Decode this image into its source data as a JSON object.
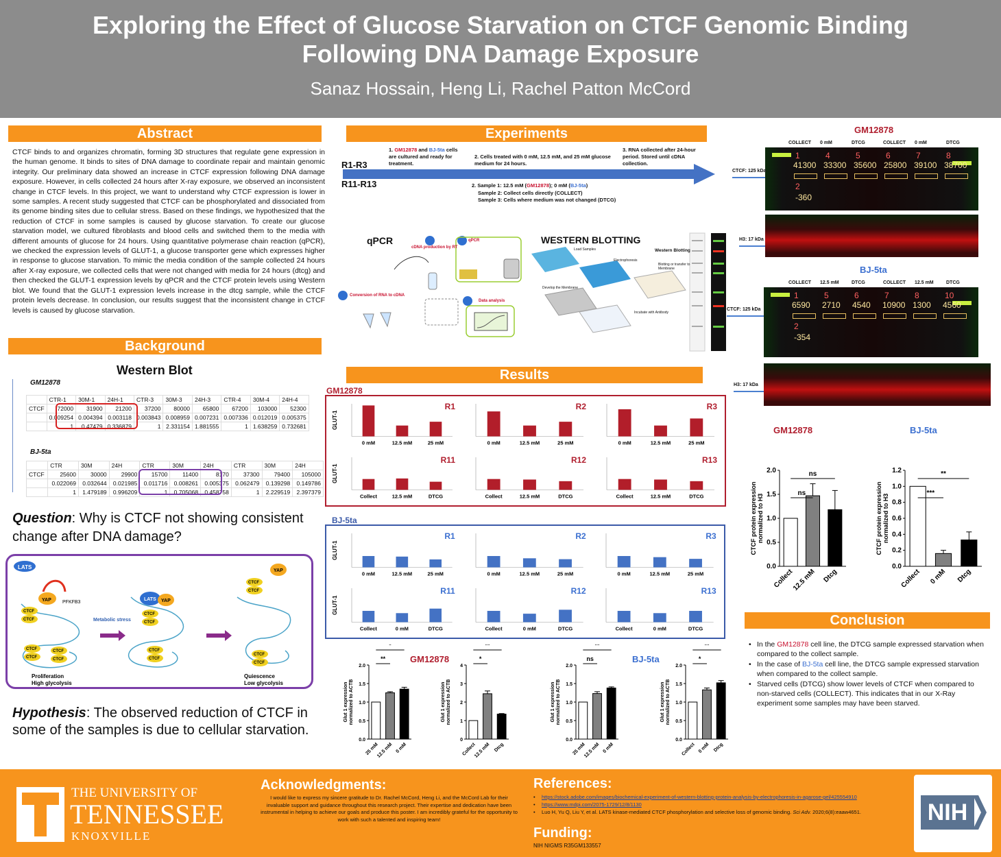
{
  "header": {
    "title_line1": "Exploring the Effect of Glucose Starvation on CTCF Genomic Binding",
    "title_line2": "Following DNA Damage Exposure",
    "authors": "Sanaz Hossain, Heng Li, Rachel Patton McCord"
  },
  "abstract": {
    "title": "Abstract",
    "text": "CTCF binds to and organizes chromatin, forming 3D structures that regulate gene expression in the human genome. It binds to sites of DNA damage to coordinate repair and maintain genomic integrity.  Our preliminary data showed an increase in CTCF expression following DNA damage exposure. However, in cells collected 24 hours after X-ray exposure, we observed an inconsistent change in CTCF levels. In this project, we want to understand why CTCF expression is lower in some samples. A recent study suggested that CTCF can be phosphorylated and dissociated from its genome binding sites due to cellular stress. Based on these findings, we hypothesized that the reduction of CTCF in some samples is caused by glucose starvation. To create our glucose starvation model, we cultured fibroblasts and blood cells and switched them to the media with different amounts of glucose for 24 hours. Using quantitative polymerase chain reaction (qPCR), we checked the expression levels of GLUT-1, a glucose transporter gene which expresses higher in response to glucose starvation. To mimic the media condition of the sample collected 24 hours after X-ray exposure, we collected cells that were not changed with media for 24 hours (dtcg) and then checked the GLUT-1 expression levels by qPCR and the CTCF protein levels using Western blot. We found that the GLUT-1 expression levels increase in the dtcg sample, while the CTCF protein levels decrease. In conclusion, our results suggest that the inconsistent change in CTCF levels is caused by glucose starvation."
  },
  "background": {
    "title": "Background",
    "wb_title": "Western Blot",
    "gm_label": "GM12878",
    "bj_label": "BJ-5ta",
    "gm_table": {
      "header": [
        "",
        "CTR-1",
        "30M-1",
        "24H-1",
        "CTR-3",
        "30M-3",
        "24H-3",
        "CTR-4",
        "30M-4",
        "24H-4"
      ],
      "rows": [
        [
          "CTCF",
          "72000",
          "31900",
          "21200",
          "37200",
          "80000",
          "65800",
          "67200",
          "103000",
          "52300"
        ],
        [
          "",
          "0.009254",
          "0.004394",
          "0.003118",
          "0.003843",
          "0.008959",
          "0.007231",
          "0.007336",
          "0.012019",
          "0.005375"
        ],
        [
          "",
          "1",
          "0.47479",
          "0.336879",
          "1",
          "2.331154",
          "1.881555",
          "1",
          "1.638259",
          "0.732681"
        ]
      ]
    },
    "bj_table": {
      "header": [
        "",
        "CTR",
        "30M",
        "24H",
        "CTR",
        "30M",
        "24H",
        "CTR",
        "30M",
        "24H"
      ],
      "rows": [
        [
          "CTCF",
          "25600",
          "30000",
          "29900",
          "15700",
          "11400",
          "8170",
          "37300",
          "79400",
          "105000"
        ],
        [
          "",
          "0.022069",
          "0.032644",
          "0.021985",
          "0.011716",
          "0.008261",
          "0.005375",
          "0.062479",
          "0.139298",
          "0.149786"
        ],
        [
          "",
          "1",
          "1.479189",
          "0.996209",
          "1",
          "0.705068",
          "0.458758",
          "1",
          "2.229519",
          "2.397379"
        ]
      ]
    },
    "question_bold": "Question",
    "question_text": ": Why is CTCF not showing consistent change after DNA damage?",
    "diagram": {
      "lats": "LATS",
      "yap": "YAP",
      "pfkfb3": "PFKFB3",
      "ctcf": "CTCF",
      "metabolic": "Metabolic stress",
      "left_caption": "Proliferation",
      "left_caption2": "High glycolysis",
      "right_caption": "Quiescence",
      "right_caption2": "Low glycolysis"
    },
    "hypothesis_bold": "Hypothesis",
    "hypothesis_text": ": The observed reduction of CTCF in some of the samples is due to cellular starvation."
  },
  "experiments": {
    "title": "Experiments",
    "r1": "R1-R3",
    "r11": "R11-R13",
    "step1a": "1. ",
    "step1_gm": "GM12878",
    "step1_and": " and ",
    "step1_bj": "BJ-5ta",
    "step1b": " cells are cultured and ready for treatment.",
    "step2": "2. Cells treated with 0 mM, 12.5 mM, and 25 mM glucose medium for 24 hours.",
    "step3": "3. RNA collected after 24-hour period. Stored until cDNA collection.",
    "sample1a": "2. Sample 1: 12.5 mM (",
    "sample1_gm": "GM12878",
    "sample1b": "); 0 mM (",
    "sample1_bj": "BJ-5ta",
    "sample1c": ")",
    "sample2": "Sample 2: Collect cells directly (COLLECT)",
    "sample3": "Sample 3: Cells where medium was not changed (DTCG)",
    "qpcr": "qPCR",
    "wb": "WESTERN BLOTTING",
    "q1": "Conversion of RNA to cDNA",
    "q2": "cDNA production by RT",
    "q3": "qPCR",
    "q4": "Data analysis",
    "wb1": "Load Samples",
    "wb2": "Electrophoresis",
    "wb3": "Blotting or transfer to Membrane",
    "wb4": "Develop the Membrane",
    "wb5": "Incubate with Antibody",
    "wb6": "Western Blotting"
  },
  "results": {
    "title": "Results",
    "gm": "GM12878",
    "bj": "BJ-5ta",
    "ylabel": "GLUT-1",
    "gm_panels": [
      {
        "name": "R1",
        "cats": [
          "0 mM",
          "12.5 mM",
          "25 mM"
        ],
        "values": [
          2.85,
          1.0,
          1.35
        ]
      },
      {
        "name": "R2",
        "cats": [
          "0 mM",
          "12.5 mM",
          "25 mM"
        ],
        "values": [
          2.3,
          1.0,
          1.35
        ]
      },
      {
        "name": "R3",
        "cats": [
          "0 mM",
          "12.5 mM",
          "25 mM"
        ],
        "values": [
          2.5,
          1.0,
          1.65
        ]
      },
      {
        "name": "R11",
        "cats": [
          "Collect",
          "12.5 mM",
          "DTCG"
        ],
        "values": [
          1.0,
          1.05,
          0.75
        ]
      },
      {
        "name": "R12",
        "cats": [
          "Collect",
          "12.5 mM",
          "DTCG"
        ],
        "values": [
          1.0,
          0.95,
          0.8
        ]
      },
      {
        "name": "R13",
        "cats": [
          "Collect",
          "12.5 mM",
          "DTCG"
        ],
        "values": [
          1.0,
          0.95,
          0.8
        ]
      }
    ],
    "bj_panels": [
      {
        "name": "R1",
        "cats": [
          "0 mM",
          "12.5 mM",
          "25 mM"
        ],
        "values": [
          1.0,
          0.95,
          0.7
        ]
      },
      {
        "name": "R2",
        "cats": [
          "0 mM",
          "12.5 mM",
          "25 mM"
        ],
        "values": [
          1.0,
          0.8,
          0.72
        ]
      },
      {
        "name": "R3",
        "cats": [
          "0 mM",
          "12.5 mM",
          "25 mM"
        ],
        "values": [
          1.0,
          0.9,
          0.75
        ]
      },
      {
        "name": "R11",
        "cats": [
          "Collect",
          "0 mM",
          "DTCG"
        ],
        "values": [
          1.0,
          0.8,
          1.2
        ]
      },
      {
        "name": "R12",
        "cats": [
          "Collect",
          "0 mM",
          "DTCG"
        ],
        "values": [
          1.0,
          0.75,
          1.1
        ]
      },
      {
        "name": "R13",
        "cats": [
          "Collect",
          "0 mM",
          "DTCG"
        ],
        "values": [
          1.0,
          0.8,
          1.0
        ]
      }
    ]
  },
  "blots": {
    "gm_title": "GM12878",
    "bj_title": "BJ-5ta",
    "ctcf": "CTCF: 125 kDa",
    "h3": "H3: 17 kDa",
    "gm_headers": [
      "COLLECT",
      "0 mM",
      "DTCG",
      "COLLECT",
      "0 mM",
      "DTCG"
    ],
    "bj_headers": [
      "COLLECT",
      "12.5 mM",
      "DTCG",
      "COLLECT",
      "12.5 mM",
      "DTCG"
    ],
    "gm_lanes": [
      "1",
      "4",
      "5",
      "6",
      "7",
      "8"
    ],
    "gm_values": [
      "41300",
      "33300",
      "35600",
      "25800",
      "39100",
      "38700"
    ],
    "gm_bg_lane": "2",
    "gm_bg": "-360",
    "bj_lanes": [
      "1",
      "5",
      "6",
      "7",
      "8",
      "10"
    ],
    "bj_values": [
      "6590",
      "2710",
      "4540",
      "10900",
      "1300",
      "4560"
    ],
    "bj_bg_lane": "2",
    "bj_bg": "-354"
  },
  "chart_data": [
    {
      "type": "bar",
      "title": "GM12878",
      "ylabel": "CTCF protein expression normalized to H3",
      "categories": [
        "Collect",
        "12.5 mM",
        "Dtcg"
      ],
      "values": [
        1.0,
        1.47,
        1.18
      ],
      "errors": [
        0,
        0.25,
        0.4
      ],
      "ylim": [
        0,
        2.0
      ],
      "yticks": [
        "0.0",
        "0.5",
        "1.0",
        "1.5",
        "2.0"
      ],
      "sig": [
        "ns",
        "ns"
      ]
    },
    {
      "type": "bar",
      "title": "BJ-5ta",
      "ylabel": "CTCF protein expression normalized to H3",
      "categories": [
        "Collect",
        "0 mM",
        "Dtcg"
      ],
      "values": [
        1.0,
        0.16,
        0.33
      ],
      "errors": [
        0,
        0.04,
        0.1
      ],
      "ylim": [
        0,
        1.2
      ],
      "yticks": [
        "0.0",
        "0.2",
        "0.4",
        "0.6",
        "0.8",
        "1.0",
        "1.2"
      ],
      "sig": [
        "***",
        "**"
      ]
    },
    {
      "type": "bar",
      "title": "GM12878",
      "ylabel": "Glut 1 expression normalized to ACTB",
      "categories": [
        "25 mM",
        "12.5 mM",
        "0 mM"
      ],
      "values": [
        1.0,
        1.25,
        1.35
      ],
      "errors": [
        0,
        0.03,
        0.05
      ],
      "ylim": [
        0,
        2.0
      ],
      "yticks": [
        "0.0",
        "0.5",
        "1.0",
        "1.5",
        "2.0"
      ],
      "sig": [
        "**",
        "*"
      ]
    },
    {
      "type": "bar",
      "title": "",
      "ylabel": "Glut 1 expression normalized to ACTB",
      "categories": [
        "Collect",
        "12.5 mM",
        "Dtcg"
      ],
      "values": [
        1.0,
        2.45,
        1.35
      ],
      "errors": [
        0,
        0.15,
        0.03
      ],
      "ylim": [
        0,
        4
      ],
      "yticks": [
        "0",
        "1",
        "2",
        "3",
        "4"
      ],
      "sig": [
        "*",
        "**"
      ]
    },
    {
      "type": "bar",
      "title": "BJ-5ta",
      "ylabel": "Glut 1 expression normalized to ACTB",
      "categories": [
        "25 mM",
        "12.5 mM",
        "0 mM"
      ],
      "values": [
        1.0,
        1.23,
        1.38
      ],
      "errors": [
        0,
        0.05,
        0.03
      ],
      "ylim": [
        0,
        2.0
      ],
      "yticks": [
        "0.0",
        "0.5",
        "1.0",
        "1.5",
        "2.0"
      ],
      "sig": [
        "ns",
        "**"
      ]
    },
    {
      "type": "bar",
      "title": "",
      "ylabel": "Glut 1 expression normalized to ACTB",
      "categories": [
        "Collect",
        "0 mM",
        "Dtcg"
      ],
      "values": [
        1.0,
        1.33,
        1.52
      ],
      "errors": [
        0,
        0.05,
        0.06
      ],
      "ylim": [
        0,
        2.0
      ],
      "yticks": [
        "0.0",
        "0.5",
        "1.0",
        "1.5",
        "2.0"
      ],
      "sig": [
        "*",
        "**"
      ]
    }
  ],
  "conclusion": {
    "title": "Conclusion",
    "b1a": "In the ",
    "b1_gm": "GM12878",
    "b1b": " cell line, the DTCG sample expressed starvation when compared to the collect sample.",
    "b2a": "In the case of ",
    "b2_bj": "BJ-5ta",
    "b2b": " cell line, the DTCG sample expressed starvation when compared to the collect sample.",
    "b3": "Starved cells (DTCG) show lower levels of CTCF when compared to non-starved cells (COLLECT). This indicates that in our X-Ray experiment some samples may have been starved."
  },
  "footer": {
    "univ1": "THE UNIVERSITY OF",
    "univ2": "TENNESSEE",
    "univ3": "KNOXVILLE",
    "ack_title": "Acknowledgments:",
    "ack_text": "I would like to express my sincere gratitude to Dr. Rachel McCord, Heng Li, and the McCord Lab for their invaluable support and guidance throughout this research project. Their expertise and dedication have been instrumental in helping to achieve our goals and produce this poster. I am incredibly grateful for the opportunity to work with such a talented and inspiring team!",
    "ref_title": "References:",
    "ref1": "https://stock.adobe.com/images/biochemical-experiment-of-western-blotting-protein-analysis-by-electrophoresis-in-agarose-gel/425554910",
    "ref2": "https://www.mdpi.com/2075-1729/12/8/1130",
    "ref3": "Luo H, Yu Q, Liu Y, et al. LATS kinase-mediated CTCF phosphorylation and selective loss of genomic binding. ",
    "ref3_journal": "Sci Adv.",
    "ref3_end": " 2020;6(8):eaaw4651.",
    "fund_title": "Funding:",
    "fund_text": "NIH NIGMS R35GM133557",
    "nih": "NIH"
  },
  "colors": {
    "orange": "#f7941d",
    "header_gray": "#8c8c8c",
    "gm_red": "#b01e2e",
    "bj_blue": "#3b5aa8"
  }
}
